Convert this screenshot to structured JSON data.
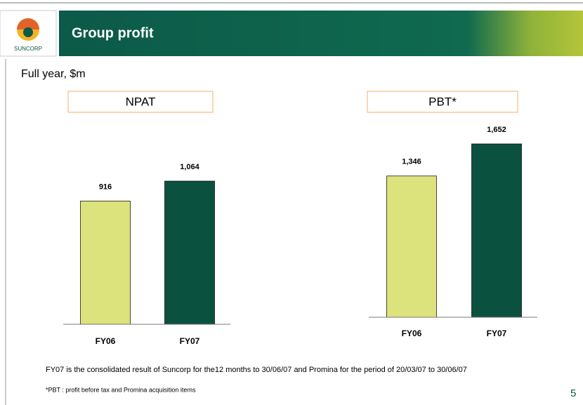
{
  "header": {
    "title": "Group profit",
    "logo_text": "SUNCORP"
  },
  "subtitle": "Full year, $m",
  "chart_data": [
    {
      "type": "bar",
      "title": "NPAT",
      "categories": [
        "FY06",
        "FY07"
      ],
      "values": [
        916,
        1064
      ],
      "value_labels": [
        "916",
        "1,064"
      ],
      "colors": [
        "#dce27c",
        "#0b5140"
      ]
    },
    {
      "type": "bar",
      "title": "PBT*",
      "categories": [
        "FY06",
        "FY07"
      ],
      "values": [
        1346,
        1652
      ],
      "value_labels": [
        "1,346",
        "1,652"
      ],
      "colors": [
        "#dce27c",
        "#0b5140"
      ]
    }
  ],
  "notes": [
    "FY07 is the consolidated result of Suncorp for the12 months to 30/06/07 and Promina for the period of 20/03/07 to 30/06/07",
    "*PBT : profit before tax and Promina acquisition items"
  ],
  "page_number": 5
}
